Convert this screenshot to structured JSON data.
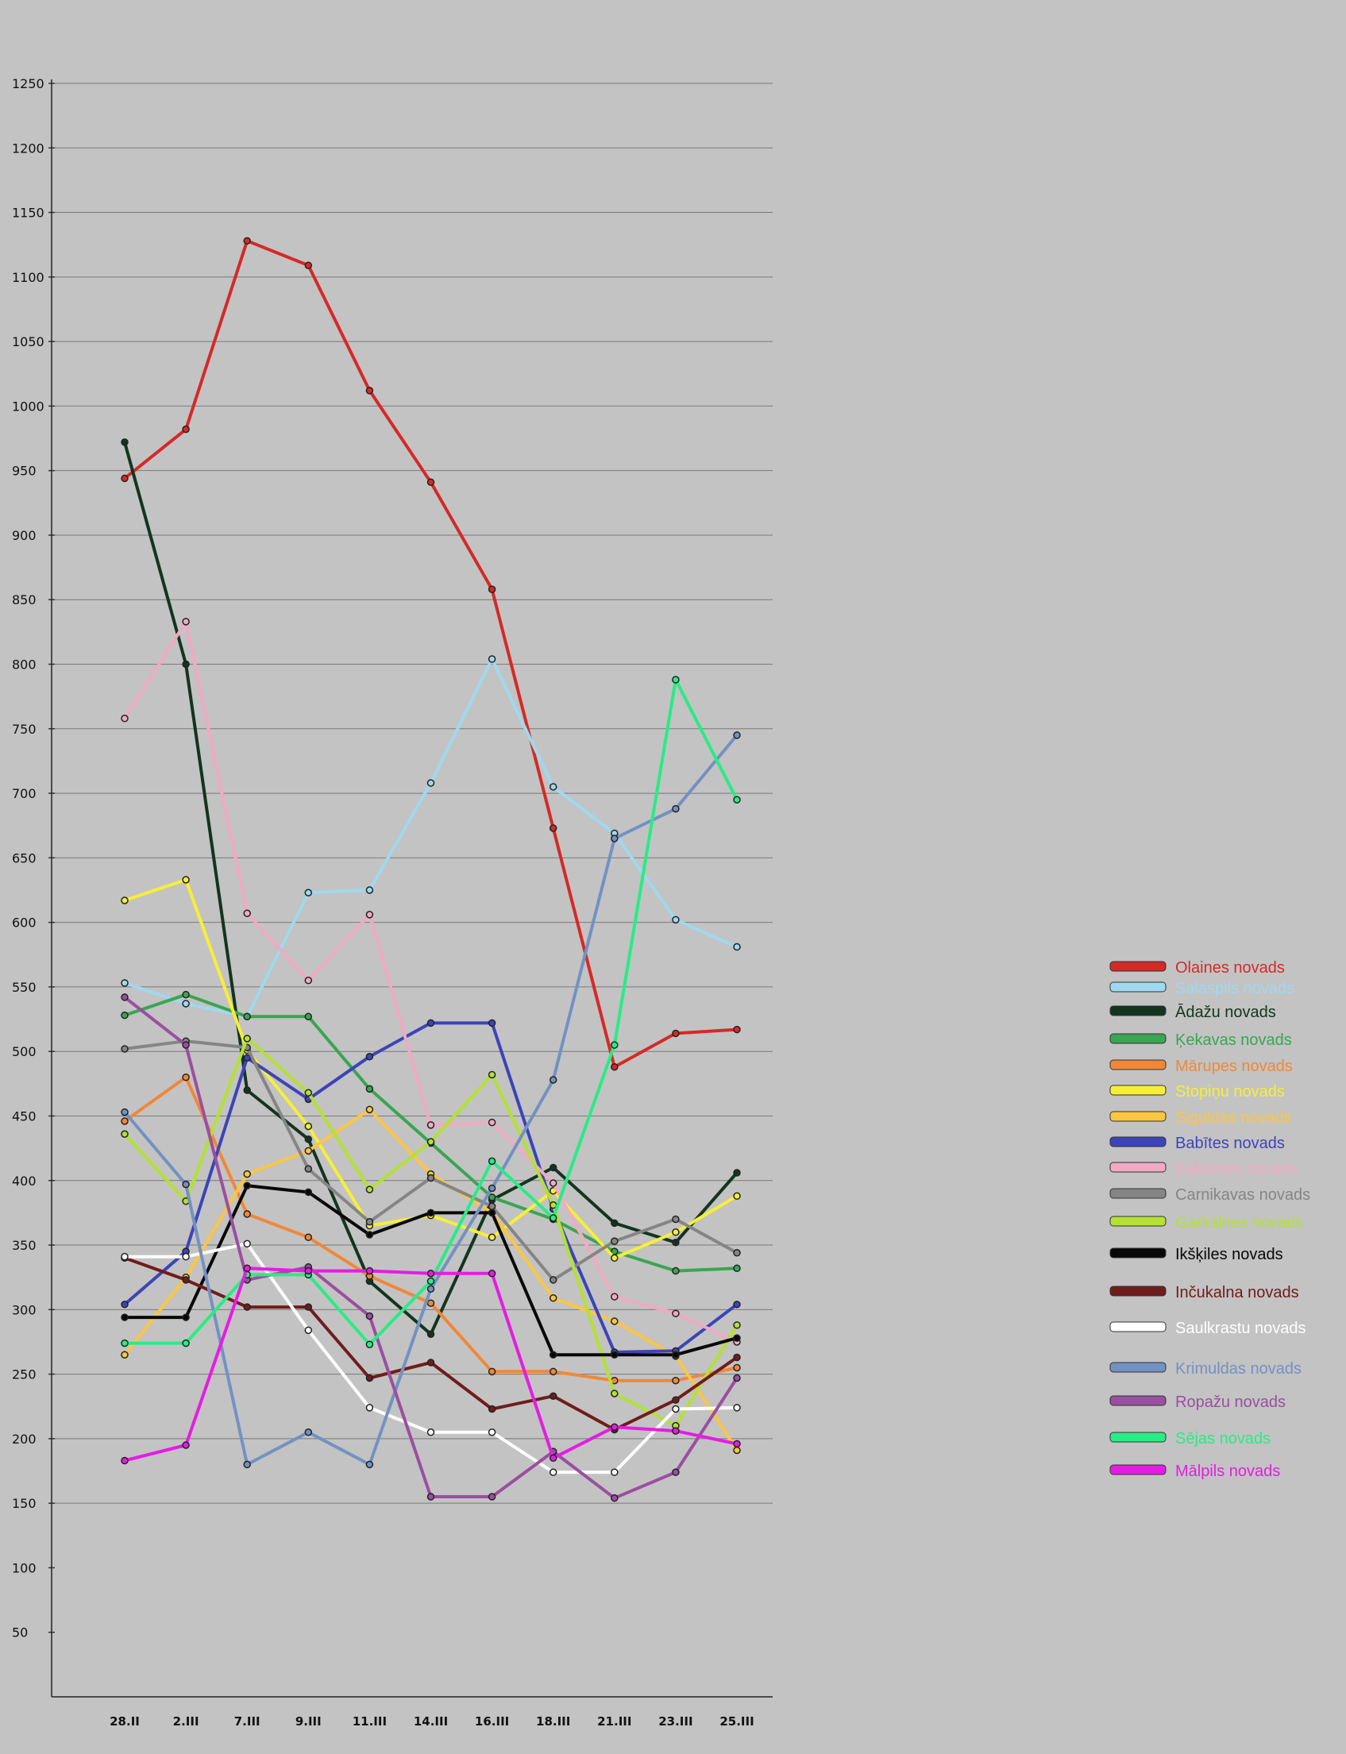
{
  "chart_data": {
    "type": "line",
    "title": "",
    "xlabel": "",
    "ylabel": "",
    "categories": [
      "28.II",
      "2.III",
      "7.III",
      "9.III",
      "11.III",
      "14.III",
      "16.III",
      "18.III",
      "21.III",
      "23.III",
      "25.III"
    ],
    "y_ticks": [
      50,
      100,
      150,
      200,
      250,
      300,
      350,
      400,
      450,
      500,
      550,
      600,
      650,
      700,
      750,
      800,
      850,
      900,
      950,
      1000,
      1050,
      1100,
      1150,
      1200,
      1250
    ],
    "ylim": [
      0,
      1260
    ],
    "grid": true,
    "legend_position": "right",
    "series": [
      {
        "name": "Olaines novads",
        "color": "#d42a28",
        "values": [
          944,
          982,
          1128,
          1109,
          1012,
          941,
          858,
          673,
          488,
          514,
          517
        ]
      },
      {
        "name": "Salaspils novads",
        "color": "#9fd9ef",
        "values": [
          553,
          537,
          527,
          623,
          625,
          708,
          804,
          705,
          669,
          602,
          581
        ]
      },
      {
        "name": "Ādažu novads",
        "color": "#13351f",
        "values": [
          972,
          800,
          470,
          432,
          322,
          281,
          385,
          410,
          367,
          352,
          406
        ]
      },
      {
        "name": "Ķekavas novads",
        "color": "#3aa552",
        "values": [
          528,
          544,
          527,
          527,
          471,
          429,
          387,
          370,
          345,
          330,
          332
        ]
      },
      {
        "name": "Mārupes novads",
        "color": "#f08838",
        "values": [
          446,
          480,
          374,
          356,
          326,
          305,
          252,
          252,
          245,
          245,
          255
        ]
      },
      {
        "name": "Stopiņu novads",
        "color": "#f7ef35",
        "values": [
          617,
          633,
          501,
          442,
          365,
          373,
          356,
          392,
          340,
          360,
          388
        ]
      },
      {
        "name": "Siguldas novads",
        "color": "#fbc642",
        "values": [
          265,
          325,
          405,
          423,
          455,
          405,
          375,
          309,
          291,
          264,
          191
        ]
      },
      {
        "name": "Babītes novads",
        "color": "#3c44b8",
        "values": [
          304,
          345,
          495,
          463,
          496,
          522,
          522,
          378,
          267,
          268,
          304
        ]
      },
      {
        "name": "Baldones novads",
        "color": "#f2a9c3",
        "values": [
          758,
          833,
          607,
          555,
          606,
          443,
          445,
          398,
          310,
          297,
          275
        ]
      },
      {
        "name": "Carnikavas novads",
        "color": "#858585",
        "values": [
          502,
          508,
          503,
          409,
          368,
          402,
          380,
          323,
          353,
          370,
          344
        ]
      },
      {
        "name": "Garkalnes novads",
        "color": "#b4e133",
        "values": [
          436,
          384,
          510,
          468,
          393,
          430,
          482,
          381,
          235,
          210,
          288
        ]
      },
      {
        "name": "Ikšķiles novads",
        "color": "#080808",
        "values": [
          294,
          294,
          396,
          391,
          358,
          375,
          375,
          265,
          265,
          265,
          278
        ]
      },
      {
        "name": "Inčukalna novads",
        "color": "#701c1c",
        "values": [
          340,
          323,
          302,
          302,
          247,
          259,
          223,
          233,
          207,
          230,
          263
        ]
      },
      {
        "name": "Saulkrastu novads",
        "color": "#ffffff",
        "values": [
          341,
          341,
          351,
          284,
          224,
          205,
          205,
          174,
          174,
          223,
          224
        ]
      },
      {
        "name": "Krimuldas novads",
        "color": "#7391c2",
        "values": [
          453,
          397,
          180,
          205,
          180,
          316,
          394,
          478,
          665,
          688,
          745
        ]
      },
      {
        "name": "Ropažu novads",
        "color": "#9a4fa0",
        "values": [
          542,
          505,
          323,
          333,
          295,
          155,
          155,
          190,
          154,
          174,
          247
        ]
      },
      {
        "name": "Sējas novads",
        "color": "#28ec85",
        "values": [
          274,
          274,
          327,
          327,
          273,
          322,
          415,
          371,
          505,
          788,
          695
        ]
      },
      {
        "name": "Mālpils novads",
        "color": "#e41de2",
        "values": [
          183,
          195,
          332,
          330,
          330,
          328,
          328,
          185,
          209,
          206,
          196
        ]
      }
    ]
  }
}
